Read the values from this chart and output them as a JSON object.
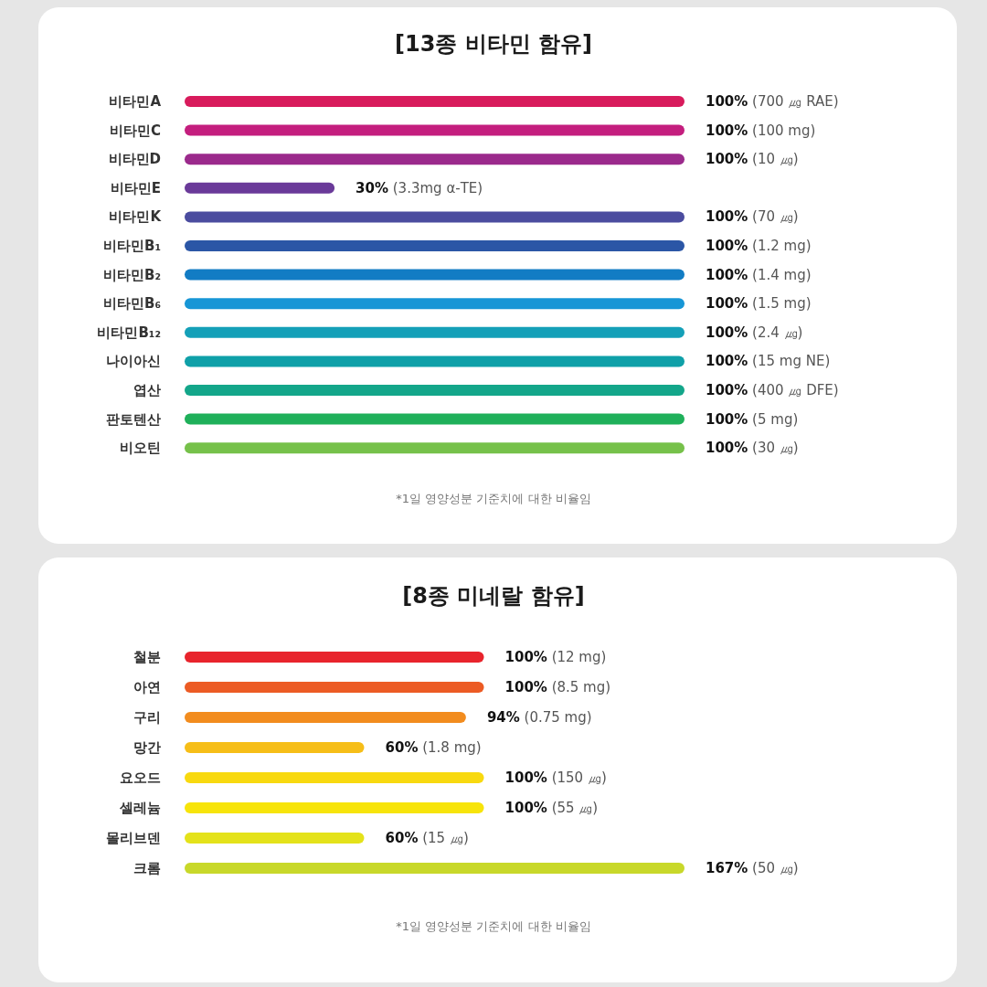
{
  "chart_data": [
    {
      "type": "bar",
      "orientation": "horizontal",
      "title": "[13종 비타민 함유]",
      "categories": [
        "비타민A",
        "비타민C",
        "비타민D",
        "비타민E",
        "비타민K",
        "비타민B₁",
        "비타민B₂",
        "비타민B₆",
        "비타민B₁₂",
        "나이아신",
        "엽산",
        "판토텐산",
        "비오틴"
      ],
      "values": [
        100,
        100,
        100,
        30,
        100,
        100,
        100,
        100,
        100,
        100,
        100,
        100,
        100
      ],
      "value_labels": [
        "100% (700 ㎍ RAE)",
        "100% (100 mg)",
        "100% (10 ㎍)",
        "30% (3.3mg α-TE)",
        "100% (70 ㎍)",
        "100% (1.2 mg)",
        "100% (1.4 mg)",
        "100% (1.5 mg)",
        "100% (2.4 ㎍)",
        "100% (15 mg NE)",
        "100% (400 ㎍ DFE)",
        "100% (5 mg)",
        "100% (30 ㎍)"
      ],
      "colors": [
        "#d81b5c",
        "#c41e7e",
        "#9b2a8c",
        "#6a3a99",
        "#4b4c9f",
        "#2b56a6",
        "#127cc4",
        "#1796d6",
        "#14a0b8",
        "#0fa0a8",
        "#13a68a",
        "#1fb05a",
        "#76c14a"
      ],
      "annotations": [
        "*1일 영양성분 기준치에 대한 비율임"
      ]
    },
    {
      "type": "bar",
      "orientation": "horizontal",
      "title": "[8종 미네랄 함유]",
      "categories": [
        "철분",
        "아연",
        "구리",
        "망간",
        "요오드",
        "셀레늄",
        "몰리브덴",
        "크롬"
      ],
      "values": [
        100,
        100,
        94,
        60,
        100,
        100,
        60,
        167
      ],
      "value_labels": [
        "100% (12 mg)",
        "100% (8.5 mg)",
        "94% (0.75 mg)",
        "60% (1.8 mg)",
        "100% (150 ㎍)",
        "100% (55 ㎍)",
        "60% (15 ㎍)",
        "167% (50 ㎍)"
      ],
      "colors": [
        "#e8242c",
        "#ec5b24",
        "#f28c1e",
        "#f6be18",
        "#f8d90f",
        "#f7e40a",
        "#e4e21a",
        "#c8d82a"
      ],
      "annotations": [
        "*1일 영양성분 기준치에 대한 비율임"
      ]
    }
  ]
}
